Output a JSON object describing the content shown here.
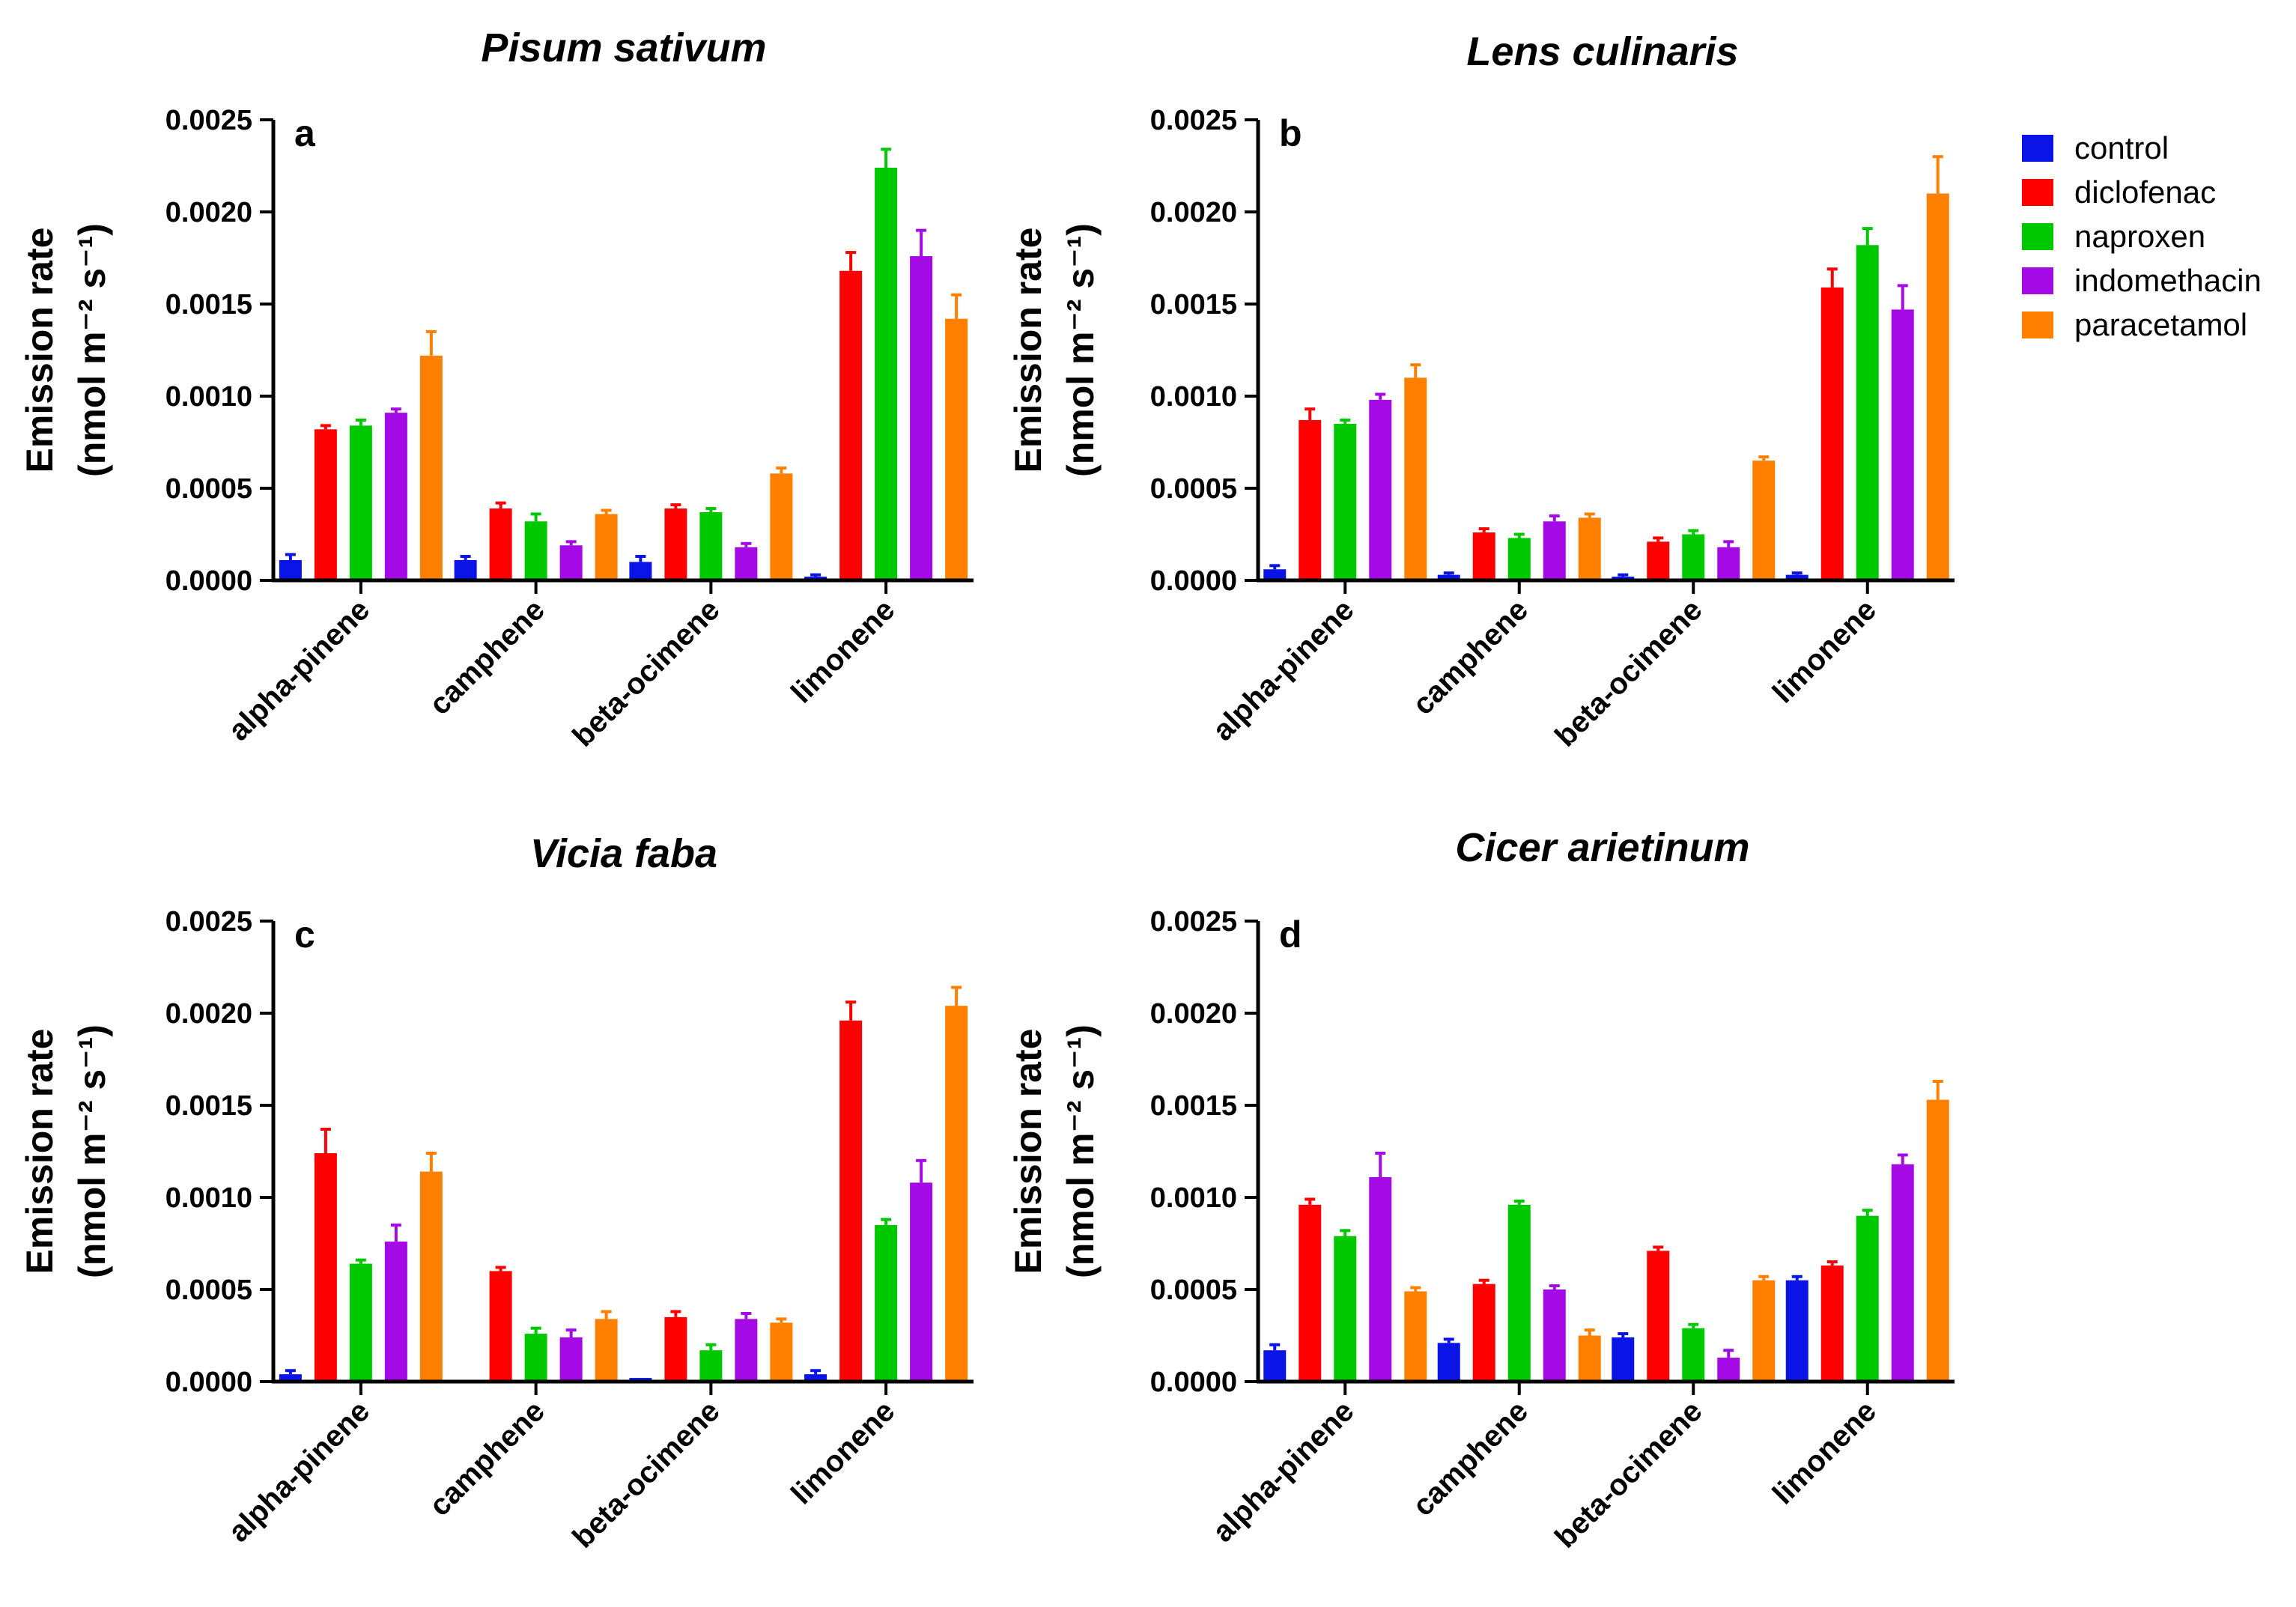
{
  "chart_data": {
    "type": "bar",
    "y_unit_label_line1": "Emission rate",
    "y_unit_label_line2": "(nmol m⁻² s⁻¹)",
    "ylim": [
      0,
      0.0025
    ],
    "yticks": [
      "0.0000",
      "0.0005",
      "0.0010",
      "0.0015",
      "0.0020",
      "0.0025"
    ],
    "categories": [
      "alpha-pinene",
      "camphene",
      "beta-ocimene",
      "limonene"
    ],
    "legend": [
      {
        "name": "control",
        "color": "#0a14e6"
      },
      {
        "name": "diclofenac",
        "color": "#ff0000"
      },
      {
        "name": "naproxen",
        "color": "#00c800"
      },
      {
        "name": "indomethacin",
        "color": "#a40ae6"
      },
      {
        "name": "paracetamol",
        "color": "#ff8000"
      }
    ],
    "panels": [
      {
        "label": "a",
        "title": "Pisum sativum",
        "series": [
          {
            "name": "control",
            "values": [
              0.00011,
              0.00011,
              0.0001,
              2e-05
            ],
            "errors": [
              3e-05,
              2e-05,
              3e-05,
              1e-05
            ]
          },
          {
            "name": "diclofenac",
            "values": [
              0.00082,
              0.00039,
              0.00039,
              0.00168
            ],
            "errors": [
              2e-05,
              3e-05,
              2e-05,
              0.0001
            ]
          },
          {
            "name": "naproxen",
            "values": [
              0.00084,
              0.00032,
              0.00037,
              0.00224
            ],
            "errors": [
              3e-05,
              4e-05,
              2e-05,
              0.0001
            ]
          },
          {
            "name": "indomethacin",
            "values": [
              0.00091,
              0.00019,
              0.00018,
              0.00176
            ],
            "errors": [
              2e-05,
              2e-05,
              2e-05,
              0.00014
            ]
          },
          {
            "name": "paracetamol",
            "values": [
              0.00122,
              0.00036,
              0.00058,
              0.00142
            ],
            "errors": [
              0.00013,
              2e-05,
              3e-05,
              0.00013
            ]
          }
        ]
      },
      {
        "label": "b",
        "title": "Lens culinaris",
        "series": [
          {
            "name": "control",
            "values": [
              6e-05,
              3e-05,
              2e-05,
              3e-05
            ],
            "errors": [
              2e-05,
              1e-05,
              1e-05,
              1e-05
            ]
          },
          {
            "name": "diclofenac",
            "values": [
              0.00087,
              0.00026,
              0.00021,
              0.00159
            ],
            "errors": [
              6e-05,
              2e-05,
              2e-05,
              0.0001
            ]
          },
          {
            "name": "naproxen",
            "values": [
              0.00085,
              0.00023,
              0.00025,
              0.00182
            ],
            "errors": [
              2e-05,
              2e-05,
              2e-05,
              9e-05
            ]
          },
          {
            "name": "indomethacin",
            "values": [
              0.00098,
              0.00032,
              0.00018,
              0.00147
            ],
            "errors": [
              3e-05,
              3e-05,
              3e-05,
              0.00013
            ]
          },
          {
            "name": "paracetamol",
            "values": [
              0.0011,
              0.00034,
              0.00065,
              0.0021
            ],
            "errors": [
              7e-05,
              2e-05,
              2e-05,
              0.0002
            ]
          }
        ]
      },
      {
        "label": "c",
        "title": "Vicia faba",
        "series": [
          {
            "name": "control",
            "values": [
              4e-05,
              1e-05,
              2e-05,
              4e-05
            ],
            "errors": [
              2e-05,
              0.0,
              0.0,
              2e-05
            ]
          },
          {
            "name": "diclofenac",
            "values": [
              0.00124,
              0.0006,
              0.00035,
              0.00196
            ],
            "errors": [
              0.00013,
              2e-05,
              3e-05,
              0.0001
            ]
          },
          {
            "name": "naproxen",
            "values": [
              0.00064,
              0.00026,
              0.00017,
              0.00085
            ],
            "errors": [
              2e-05,
              3e-05,
              3e-05,
              3e-05
            ]
          },
          {
            "name": "indomethacin",
            "values": [
              0.00076,
              0.00024,
              0.00034,
              0.00108
            ],
            "errors": [
              9e-05,
              4e-05,
              3e-05,
              0.00012
            ]
          },
          {
            "name": "paracetamol",
            "values": [
              0.00114,
              0.00034,
              0.00032,
              0.00204
            ],
            "errors": [
              0.0001,
              4e-05,
              2e-05,
              0.0001
            ]
          }
        ]
      },
      {
        "label": "d",
        "title": "Cicer arietinum",
        "series": [
          {
            "name": "control",
            "values": [
              0.00017,
              0.00021,
              0.00024,
              0.00055
            ],
            "errors": [
              3e-05,
              2e-05,
              2e-05,
              2e-05
            ]
          },
          {
            "name": "diclofenac",
            "values": [
              0.00096,
              0.00053,
              0.00071,
              0.00063
            ],
            "errors": [
              3e-05,
              2e-05,
              2e-05,
              2e-05
            ]
          },
          {
            "name": "naproxen",
            "values": [
              0.00079,
              0.00096,
              0.00029,
              0.0009
            ],
            "errors": [
              3e-05,
              2e-05,
              2e-05,
              3e-05
            ]
          },
          {
            "name": "indomethacin",
            "values": [
              0.00111,
              0.0005,
              0.00013,
              0.00118
            ],
            "errors": [
              0.00013,
              2e-05,
              4e-05,
              5e-05
            ]
          },
          {
            "name": "paracetamol",
            "values": [
              0.00049,
              0.00025,
              0.00055,
              0.00153
            ],
            "errors": [
              2e-05,
              3e-05,
              2e-05,
              0.0001
            ]
          }
        ]
      }
    ]
  }
}
